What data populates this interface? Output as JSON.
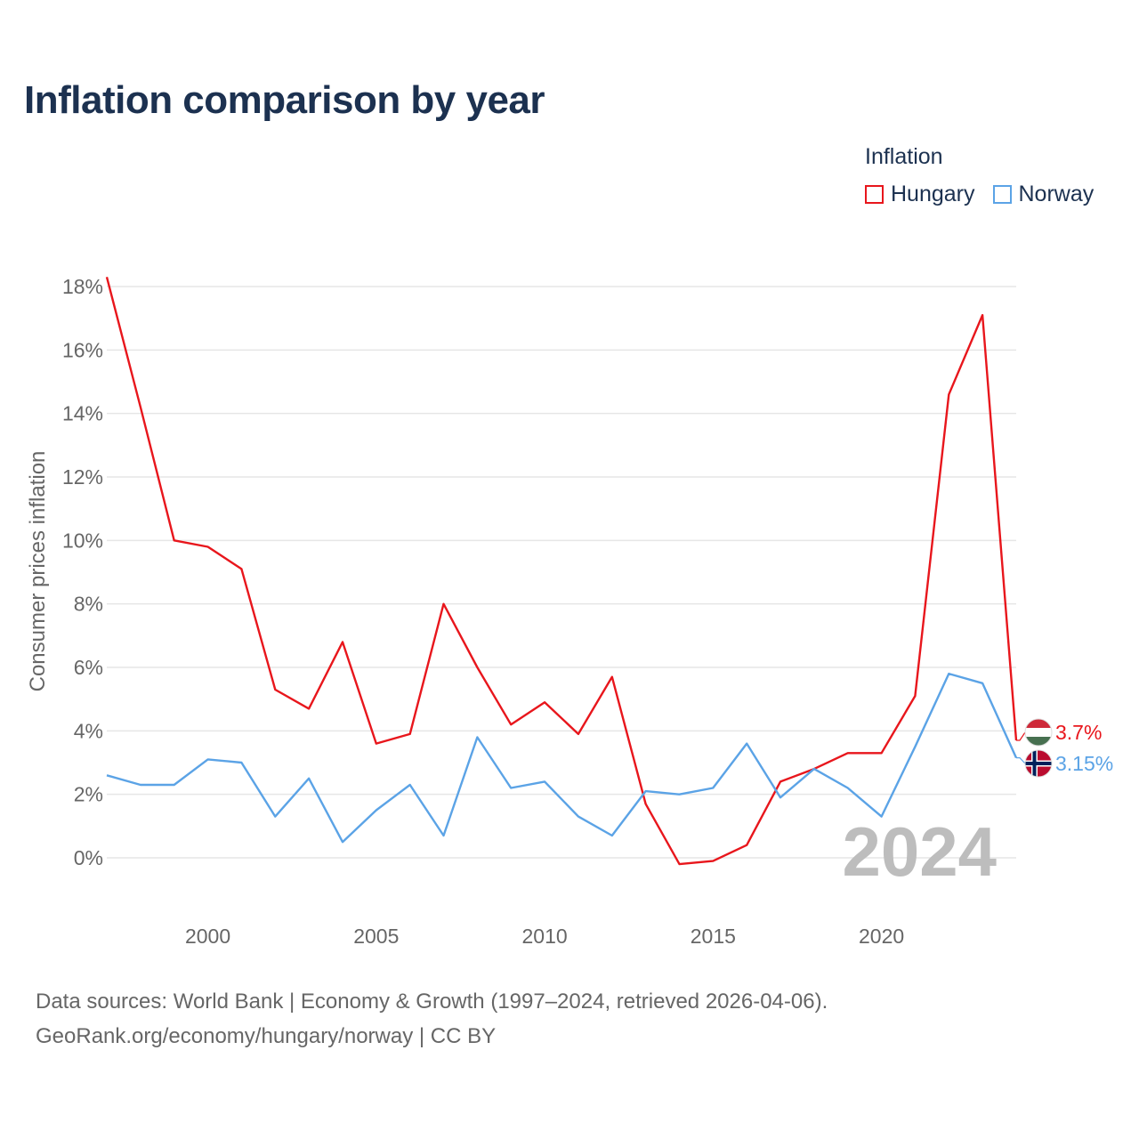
{
  "title": "Inflation comparison by year",
  "legend": {
    "title": "Inflation",
    "items": [
      {
        "label": "Hungary",
        "color": "#e8161c"
      },
      {
        "label": "Norway",
        "color": "#5ba3e6"
      }
    ]
  },
  "year_watermark": "2024",
  "source": {
    "line1": "Data sources: World Bank | Economy & Growth (1997–2024, retrieved 2026-04-06).",
    "line2": "GeoRank.org/economy/hungary/norway | CC BY"
  },
  "chart_data": {
    "type": "line",
    "title": "Inflation comparison by year",
    "ylabel": "Consumer prices inflation",
    "xlabel": "",
    "xlim": [
      1997,
      2024
    ],
    "ylim": [
      -2,
      18
    ],
    "x_ticks": [
      {
        "value": 2000,
        "label": "2000"
      },
      {
        "value": 2005,
        "label": "2005"
      },
      {
        "value": 2010,
        "label": "2010"
      },
      {
        "value": 2015,
        "label": "2015"
      },
      {
        "value": 2020,
        "label": "2020"
      }
    ],
    "y_ticks": [
      {
        "value": 0,
        "label": "0%"
      },
      {
        "value": 2,
        "label": "2%"
      },
      {
        "value": 4,
        "label": "4%"
      },
      {
        "value": 6,
        "label": "6%"
      },
      {
        "value": 8,
        "label": "8%"
      },
      {
        "value": 10,
        "label": "10%"
      },
      {
        "value": 12,
        "label": "12%"
      },
      {
        "value": 14,
        "label": "14%"
      },
      {
        "value": 16,
        "label": "16%"
      },
      {
        "value": 18,
        "label": "18%"
      }
    ],
    "grid": true,
    "x": [
      1997,
      1998,
      1999,
      2000,
      2001,
      2002,
      2003,
      2004,
      2005,
      2006,
      2007,
      2008,
      2009,
      2010,
      2011,
      2012,
      2013,
      2014,
      2015,
      2016,
      2017,
      2018,
      2019,
      2020,
      2021,
      2022,
      2023,
      2024
    ],
    "series": [
      {
        "name": "Hungary",
        "color": "#e8161c",
        "end_label": "3.7%",
        "values": [
          18.3,
          14.2,
          10.0,
          9.8,
          9.1,
          5.3,
          4.7,
          6.8,
          3.6,
          3.9,
          8.0,
          6.0,
          4.2,
          4.9,
          3.9,
          5.7,
          1.7,
          -0.2,
          -0.1,
          0.4,
          2.4,
          2.8,
          3.3,
          3.3,
          5.1,
          14.6,
          17.1,
          3.7
        ]
      },
      {
        "name": "Norway",
        "color": "#5ba3e6",
        "end_label": "3.15%",
        "values": [
          2.6,
          2.3,
          2.3,
          3.1,
          3.0,
          1.3,
          2.5,
          0.5,
          1.5,
          2.3,
          0.7,
          3.8,
          2.2,
          2.4,
          1.3,
          0.7,
          2.1,
          2.0,
          2.2,
          3.6,
          1.9,
          2.8,
          2.2,
          1.3,
          3.5,
          5.8,
          5.5,
          3.15
        ]
      }
    ]
  }
}
